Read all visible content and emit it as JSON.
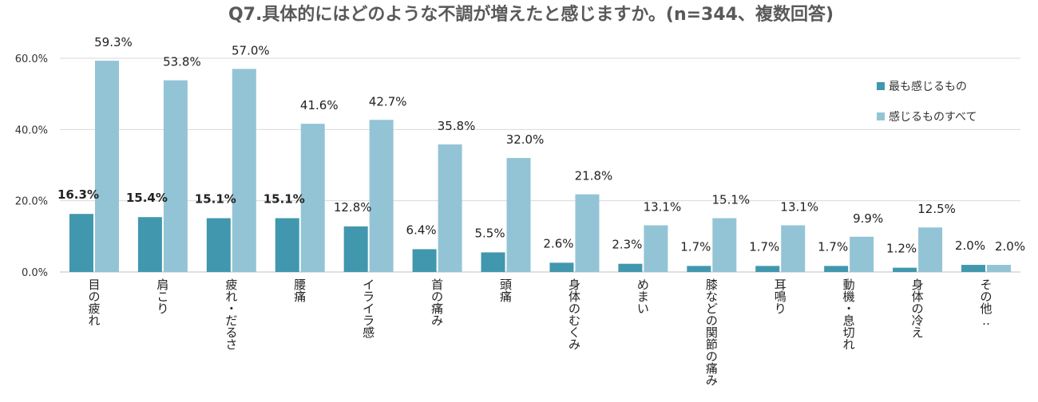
{
  "chart_data": {
    "type": "bar",
    "title": "Q7.具体的にはどのような不調が増えたと感じますか。(n=344、複数回答)",
    "categories": [
      "目の疲れ",
      "肩こり",
      "疲れ・だるさ",
      "腰痛",
      "イライラ感",
      "首の痛み",
      "頭痛",
      "身体のむくみ",
      "めまい",
      "膝などの関節の痛み",
      "耳鳴り",
      "動機・息切れ",
      "身体の冷え",
      "その他‥"
    ],
    "series": [
      {
        "name": "最も感じるもの",
        "values": [
          16.3,
          15.4,
          15.1,
          15.1,
          12.8,
          6.4,
          5.5,
          2.6,
          2.3,
          1.7,
          1.7,
          1.7,
          1.2,
          2.0
        ],
        "color": "#4197AE"
      },
      {
        "name": "感じるものすべて",
        "values": [
          59.3,
          53.8,
          57.0,
          41.6,
          42.7,
          35.8,
          32.0,
          21.8,
          13.1,
          15.1,
          13.1,
          9.9,
          12.5,
          2.0
        ],
        "color": "#93C4D5"
      }
    ],
    "value_labels": {
      "series0": [
        "16.3%",
        "15.4%",
        "15.1%",
        "15.1%",
        "12.8%",
        "6.4%",
        "5.5%",
        "2.6%",
        "2.3%",
        "1.7%",
        "1.7%",
        "1.7%",
        "1.2%",
        "2.0%"
      ],
      "series1": [
        "59.3%",
        "53.8%",
        "57.0%",
        "41.6%",
        "42.7%",
        "35.8%",
        "32.0%",
        "21.8%",
        "13.1%",
        "15.1%",
        "13.1%",
        "9.9%",
        "12.5%",
        "2.0%"
      ],
      "bold_series0_first": 4
    },
    "ylim": [
      0,
      60
    ],
    "yticks": [
      0,
      20,
      40,
      60
    ],
    "ytick_labels": [
      "0.0%",
      "20.0%",
      "40.0%",
      "60.0%"
    ],
    "grid": true,
    "legend_position": "right"
  }
}
